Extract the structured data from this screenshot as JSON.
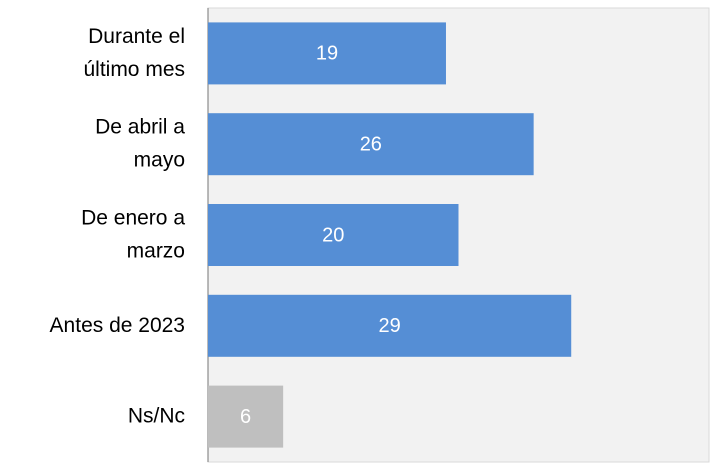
{
  "chart_data": {
    "type": "barh",
    "categories": [
      "Durante el\núltimo mes",
      "De abril a\nmayo",
      "De enero a\nmarzo",
      "Antes de 2023",
      "Ns/Nc"
    ],
    "values": [
      19,
      26,
      20,
      29,
      6
    ],
    "colors": [
      "#558ed5",
      "#558ed5",
      "#558ed5",
      "#558ed5",
      "#bfbfbf"
    ],
    "xlim": [
      0,
      40
    ]
  }
}
